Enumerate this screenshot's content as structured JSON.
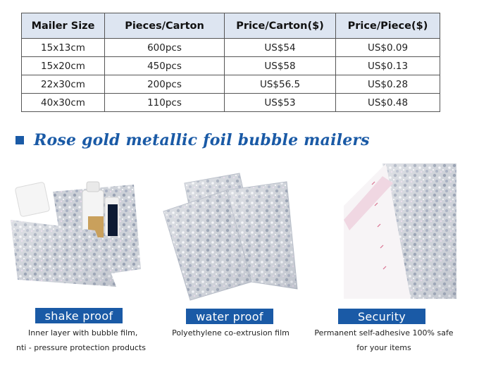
{
  "table": {
    "headers": [
      "Mailer Size",
      "Pieces/Carton",
      "Price/Carton($)",
      "Price/Piece($)"
    ],
    "rows": [
      [
        "15x13cm",
        "600pcs",
        "US$54",
        "US$0.09"
      ],
      [
        "15x20cm",
        "450pcs",
        "US$58",
        "US$0.13"
      ],
      [
        "22x30cm",
        "200pcs",
        "US$56.5",
        "US$0.28"
      ],
      [
        "40x30cm",
        "110pcs",
        "US$53",
        "US$0.48"
      ]
    ]
  },
  "section_title": "Rose gold metallic foil bubble mailers",
  "features": [
    {
      "label": "shake proof",
      "caption_line1": "Inner layer with bubble film,",
      "caption_line2": "nti - pressure protection products"
    },
    {
      "label": "water proof",
      "caption_line1": "Polyethylene co-extrusion film",
      "caption_line2": ""
    },
    {
      "label": "Security",
      "caption_line1": "Permanent self-adhesive 100% safe",
      "caption_line2": "for your items"
    }
  ],
  "colors": {
    "accent": "#1a5aa6",
    "header_bg": "#dde5f1",
    "border": "#555555"
  },
  "icons": [
    "heading-square-icon"
  ]
}
